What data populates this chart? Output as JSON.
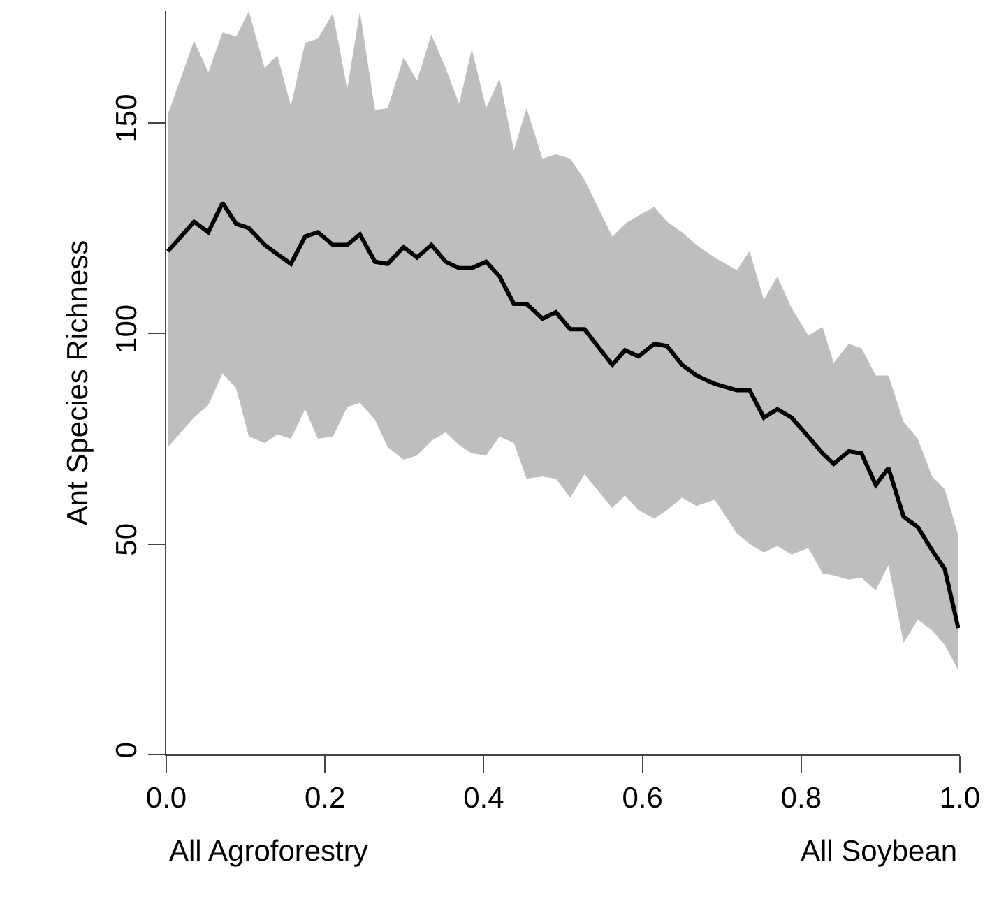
{
  "chart_data": {
    "type": "line",
    "ylabel": "Ant Species Richness",
    "x": [
      0.002,
      0.035,
      0.053,
      0.071,
      0.088,
      0.104,
      0.124,
      0.14,
      0.157,
      0.175,
      0.191,
      0.21,
      0.228,
      0.244,
      0.263,
      0.279,
      0.299,
      0.316,
      0.334,
      0.352,
      0.369,
      0.385,
      0.403,
      0.42,
      0.438,
      0.454,
      0.474,
      0.491,
      0.509,
      0.527,
      0.562,
      0.578,
      0.595,
      0.615,
      0.631,
      0.65,
      0.668,
      0.691,
      0.719,
      0.735,
      0.753,
      0.77,
      0.788,
      0.809,
      0.827,
      0.841,
      0.86,
      0.876,
      0.894,
      0.91,
      0.929,
      0.947,
      0.965,
      0.981,
      0.998
    ],
    "series": [
      {
        "color": "#000000",
        "values": [
          119.5,
          126.5,
          124,
          131,
          126,
          125,
          121,
          118.8,
          116.5,
          123,
          124,
          121,
          121,
          123.5,
          117,
          116.5,
          120.5,
          118,
          121,
          117,
          115.5,
          115.5,
          117,
          113.5,
          107,
          107,
          103.5,
          105,
          101,
          101,
          92.5,
          96,
          94.5,
          97.5,
          97,
          92.5,
          90,
          88,
          86.5,
          86.5,
          80,
          82,
          80,
          75.5,
          71.5,
          69,
          72,
          71.5,
          64,
          68,
          56.5,
          54,
          48.5,
          44,
          30
        ],
        "lower": [
          73,
          80,
          83,
          90.5,
          87,
          75.5,
          74,
          76,
          75,
          82,
          75,
          75.5,
          82.5,
          83.5,
          79.5,
          73,
          70,
          71,
          74.5,
          76.5,
          73.5,
          71.5,
          71,
          75.5,
          74,
          65.5,
          66,
          65.5,
          61,
          66.5,
          58.5,
          61.5,
          58,
          56,
          58,
          61,
          59,
          60.5,
          52.5,
          50,
          48,
          49.5,
          47.5,
          49,
          43,
          42.5,
          41.5,
          42,
          39,
          45,
          26.5,
          32,
          29.5,
          26,
          20
        ],
        "upper": [
          152,
          169.5,
          162,
          171.5,
          170.5,
          176.5,
          163,
          166,
          154,
          169,
          170,
          176,
          158,
          176.5,
          153,
          153.5,
          165.5,
          160,
          171,
          163,
          154.5,
          167.5,
          153.5,
          160.5,
          143.5,
          153.5,
          141.5,
          142.5,
          141.5,
          136.5,
          123,
          126,
          128,
          130,
          126.5,
          124,
          121,
          118,
          115,
          119.5,
          108,
          113.5,
          106,
          99.5,
          101.5,
          93,
          97.5,
          96.5,
          90,
          90,
          79,
          75,
          66,
          63,
          52
        ]
      }
    ],
    "xlim": [
      0,
      1
    ],
    "ylim": [
      0,
      176.5
    ],
    "xticks": [
      {
        "value": 0,
        "label": "0.0"
      },
      {
        "value": 0.2,
        "label": "0.2"
      },
      {
        "value": 0.4,
        "label": "0.4"
      },
      {
        "value": 0.6,
        "label": "0.6"
      },
      {
        "value": 0.8,
        "label": "0.8"
      },
      {
        "value": 1,
        "label": "1.0"
      }
    ],
    "yticks": [
      0,
      50,
      100,
      150
    ],
    "line_style": "solid",
    "marker": "none",
    "annotations": [
      "All Agroforestry",
      "All Soybean"
    ]
  }
}
